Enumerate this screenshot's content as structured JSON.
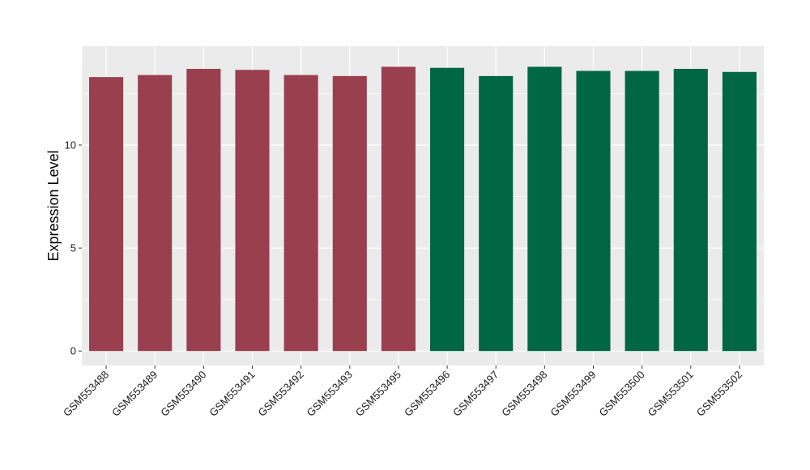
{
  "chart_data": {
    "type": "bar",
    "title": "",
    "xlabel": "",
    "ylabel": "Expression Level",
    "ylim": [
      -0.7,
      14.8
    ],
    "yticks": [
      0,
      5,
      10
    ],
    "grid": true,
    "legend": "none",
    "categories": [
      "GSM553488",
      "GSM553489",
      "GSM553490",
      "GSM553491",
      "GSM553492",
      "GSM553493",
      "GSM553495",
      "GSM553496",
      "GSM553497",
      "GSM553498",
      "GSM553499",
      "GSM553500",
      "GSM553501",
      "GSM553502"
    ],
    "values": [
      13.3,
      13.4,
      13.7,
      13.65,
      13.4,
      13.35,
      13.8,
      13.75,
      13.35,
      13.8,
      13.6,
      13.6,
      13.7,
      13.55
    ],
    "groups": [
      "a",
      "a",
      "a",
      "a",
      "a",
      "a",
      "a",
      "b",
      "b",
      "b",
      "b",
      "b",
      "b",
      "b"
    ],
    "colors": {
      "a": "#9a3f4e",
      "b": "#006644",
      "panel": "#ebebeb",
      "grid": "#ffffff"
    }
  }
}
